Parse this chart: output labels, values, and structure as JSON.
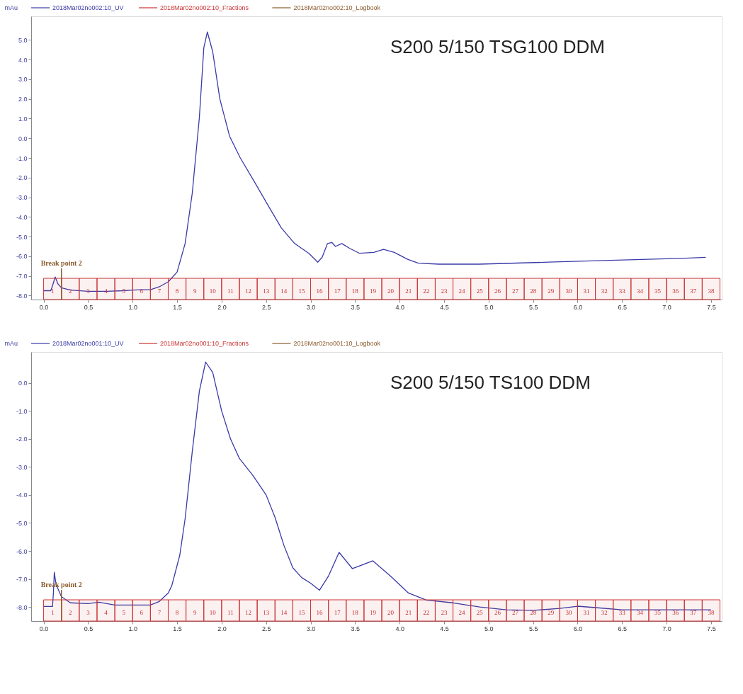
{
  "chart_data": [
    {
      "type": "line",
      "title": "S200 5/150 TSG100 DDM",
      "ylabel": "mAu",
      "legend": "top left",
      "series": [
        {
          "name": "2018Mar02no002:10_UV",
          "color": "#3a3aa8",
          "x": [
            0,
            0.08,
            0.1,
            0.13,
            0.16,
            0.2,
            0.3,
            0.5,
            0.7,
            0.9,
            1.0,
            1.1,
            1.2,
            1.3,
            1.4,
            1.5,
            1.59,
            1.67,
            1.75,
            1.8,
            1.84,
            1.9,
            1.98,
            2.09,
            2.21,
            2.36,
            2.52,
            2.67,
            2.82,
            2.98,
            3.08,
            3.13,
            3.19,
            3.24,
            3.28,
            3.35,
            3.44,
            3.55,
            3.71,
            3.82,
            3.94,
            4.09,
            4.21,
            4.44,
            4.9,
            5.67,
            6.44,
            7.21,
            7.44
          ],
          "values": [
            -7.75,
            -7.75,
            -7.5,
            -7.05,
            -7.4,
            -7.6,
            -7.72,
            -7.78,
            -7.78,
            -7.75,
            -7.72,
            -7.7,
            -7.7,
            -7.55,
            -7.3,
            -6.8,
            -5.35,
            -2.8,
            1.05,
            4.6,
            5.4,
            4.4,
            2.0,
            0.1,
            -1.0,
            -2.15,
            -3.4,
            -4.55,
            -5.35,
            -5.85,
            -6.3,
            -6.05,
            -5.35,
            -5.3,
            -5.5,
            -5.35,
            -5.6,
            -5.85,
            -5.8,
            -5.65,
            -5.8,
            -6.15,
            -6.35,
            -6.4,
            -6.4,
            -6.3,
            -6.2,
            -6.1,
            -6.05
          ]
        },
        {
          "name": "2018Mar02no002:10_Fractions",
          "color": "#cc3333"
        },
        {
          "name": "2018Mar02no002:10_Logbook",
          "color": "#8b5a2b"
        }
      ],
      "xlim": [
        -0.14,
        7.62
      ],
      "ylim": [
        -8.2,
        6.2
      ],
      "xticks": [
        {
          "value": 0,
          "label": "0.0"
        },
        {
          "value": 0.5,
          "label": "0.5"
        },
        {
          "value": 1,
          "label": "1.0"
        },
        {
          "value": 1.5,
          "label": "1.5"
        },
        {
          "value": 2,
          "label": "2.0"
        },
        {
          "value": 2.5,
          "label": "2.5"
        },
        {
          "value": 3,
          "label": "3.0"
        },
        {
          "value": 3.5,
          "label": "3.5"
        },
        {
          "value": 4,
          "label": "4.0"
        },
        {
          "value": 4.5,
          "label": "4.5"
        },
        {
          "value": 5,
          "label": "5.0"
        },
        {
          "value": 5.5,
          "label": "5.5"
        },
        {
          "value": 6,
          "label": "6.0"
        },
        {
          "value": 6.5,
          "label": "6.5"
        },
        {
          "value": 7,
          "label": "7.0"
        },
        {
          "value": 7.5,
          "label": "7.5"
        }
      ],
      "yticks": [
        {
          "value": 5,
          "label": "5.0"
        },
        {
          "value": 4,
          "label": "4.0"
        },
        {
          "value": 3,
          "label": "3.0"
        },
        {
          "value": 2,
          "label": "2.0"
        },
        {
          "value": 1,
          "label": "1.0"
        },
        {
          "value": 0,
          "label": "0.0"
        },
        {
          "value": -1,
          "label": "-1.0"
        },
        {
          "value": -2,
          "label": "-2.0"
        },
        {
          "value": -3,
          "label": "-3.0"
        },
        {
          "value": -4,
          "label": "-4.0"
        },
        {
          "value": -5,
          "label": "-5.0"
        },
        {
          "value": -6,
          "label": "-6.0"
        },
        {
          "value": -7,
          "label": "-7.0"
        },
        {
          "value": -8,
          "label": "-8.0"
        }
      ],
      "ref_lines": [
        {
          "axis": "x",
          "value": 0.2,
          "label": "Break point 2",
          "color": "#8b5a2b"
        }
      ],
      "bands": [
        {
          "axis": "x",
          "from": 0,
          "to": 0.2,
          "label": "1",
          "color": "#cc3333"
        },
        {
          "axis": "x",
          "from": 0.2,
          "to": 0.4,
          "label": "2",
          "color": "#cc3333"
        },
        {
          "axis": "x",
          "from": 0.4,
          "to": 0.6,
          "label": "3",
          "color": "#cc3333"
        },
        {
          "axis": "x",
          "from": 0.6,
          "to": 0.8,
          "label": "4",
          "color": "#cc3333"
        },
        {
          "axis": "x",
          "from": 0.8,
          "to": 1.0,
          "label": "5",
          "color": "#cc3333"
        },
        {
          "axis": "x",
          "from": 1.0,
          "to": 1.2,
          "label": "6",
          "color": "#cc3333"
        },
        {
          "axis": "x",
          "from": 1.2,
          "to": 1.4,
          "label": "7",
          "color": "#cc3333"
        },
        {
          "axis": "x",
          "from": 1.4,
          "to": 1.6,
          "label": "8",
          "color": "#cc3333"
        },
        {
          "axis": "x",
          "from": 1.6,
          "to": 1.8,
          "label": "9",
          "color": "#cc3333"
        },
        {
          "axis": "x",
          "from": 1.8,
          "to": 2.0,
          "label": "10",
          "color": "#cc3333"
        },
        {
          "axis": "x",
          "from": 2.0,
          "to": 2.2,
          "label": "11",
          "color": "#cc3333"
        },
        {
          "axis": "x",
          "from": 2.2,
          "to": 2.4,
          "label": "12",
          "color": "#cc3333"
        },
        {
          "axis": "x",
          "from": 2.4,
          "to": 2.6,
          "label": "13",
          "color": "#cc3333"
        },
        {
          "axis": "x",
          "from": 2.6,
          "to": 2.8,
          "label": "14",
          "color": "#cc3333"
        },
        {
          "axis": "x",
          "from": 2.8,
          "to": 3.0,
          "label": "15",
          "color": "#cc3333"
        },
        {
          "axis": "x",
          "from": 3.0,
          "to": 3.2,
          "label": "16",
          "color": "#cc3333"
        },
        {
          "axis": "x",
          "from": 3.2,
          "to": 3.4,
          "label": "17",
          "color": "#cc3333"
        },
        {
          "axis": "x",
          "from": 3.4,
          "to": 3.6,
          "label": "18",
          "color": "#cc3333"
        },
        {
          "axis": "x",
          "from": 3.6,
          "to": 3.8,
          "label": "19",
          "color": "#cc3333"
        },
        {
          "axis": "x",
          "from": 3.8,
          "to": 4.0,
          "label": "20",
          "color": "#cc3333"
        },
        {
          "axis": "x",
          "from": 4.0,
          "to": 4.2,
          "label": "21",
          "color": "#cc3333"
        },
        {
          "axis": "x",
          "from": 4.2,
          "to": 4.4,
          "label": "22",
          "color": "#cc3333"
        },
        {
          "axis": "x",
          "from": 4.4,
          "to": 4.6,
          "label": "23",
          "color": "#cc3333"
        },
        {
          "axis": "x",
          "from": 4.6,
          "to": 4.8,
          "label": "24",
          "color": "#cc3333"
        },
        {
          "axis": "x",
          "from": 4.8,
          "to": 5.0,
          "label": "25",
          "color": "#cc3333"
        },
        {
          "axis": "x",
          "from": 5.0,
          "to": 5.2,
          "label": "26",
          "color": "#cc3333"
        },
        {
          "axis": "x",
          "from": 5.2,
          "to": 5.4,
          "label": "27",
          "color": "#cc3333"
        },
        {
          "axis": "x",
          "from": 5.4,
          "to": 5.6,
          "label": "28",
          "color": "#cc3333"
        },
        {
          "axis": "x",
          "from": 5.6,
          "to": 5.8,
          "label": "29",
          "color": "#cc3333"
        },
        {
          "axis": "x",
          "from": 5.8,
          "to": 6.0,
          "label": "30",
          "color": "#cc3333"
        },
        {
          "axis": "x",
          "from": 6.0,
          "to": 6.2,
          "label": "31",
          "color": "#cc3333"
        },
        {
          "axis": "x",
          "from": 6.2,
          "to": 6.4,
          "label": "32",
          "color": "#cc3333"
        },
        {
          "axis": "x",
          "from": 6.4,
          "to": 6.6,
          "label": "33",
          "color": "#cc3333"
        },
        {
          "axis": "x",
          "from": 6.6,
          "to": 6.8,
          "label": "34",
          "color": "#cc3333"
        },
        {
          "axis": "x",
          "from": 6.8,
          "to": 7.0,
          "label": "35",
          "color": "#cc3333"
        },
        {
          "axis": "x",
          "from": 7.0,
          "to": 7.2,
          "label": "36",
          "color": "#cc3333"
        },
        {
          "axis": "x",
          "from": 7.2,
          "to": 7.4,
          "label": "37",
          "color": "#cc3333"
        },
        {
          "axis": "x",
          "from": 7.4,
          "to": 7.6,
          "label": "38",
          "color": "#cc3333"
        }
      ]
    },
    {
      "type": "line",
      "title": "S200 5/150 TS100 DDM",
      "ylabel": "mAu",
      "legend": "top left",
      "series": [
        {
          "name": "2018Mar02no001:10_UV",
          "color": "#3a3aa8",
          "x": [
            0,
            0.1,
            0.11,
            0.12,
            0.14,
            0.2,
            0.3,
            0.5,
            0.62,
            0.8,
            1.0,
            1.2,
            1.3,
            1.4,
            1.44,
            1.53,
            1.59,
            1.67,
            1.75,
            1.82,
            1.9,
            2.0,
            2.1,
            2.2,
            2.35,
            2.5,
            2.6,
            2.7,
            2.8,
            2.9,
            3.0,
            3.1,
            3.2,
            3.32,
            3.47,
            3.7,
            3.9,
            4.1,
            4.3,
            4.6,
            4.9,
            5.2,
            5.5,
            5.8,
            6.0,
            6.2,
            6.5,
            7.0,
            7.5
          ],
          "values": [
            -7.98,
            -7.98,
            -7.5,
            -6.76,
            -7.2,
            -7.63,
            -7.85,
            -7.88,
            -7.83,
            -7.93,
            -7.93,
            -7.93,
            -7.8,
            -7.5,
            -7.24,
            -6.15,
            -4.85,
            -2.46,
            -0.3,
            0.74,
            0.37,
            -1.0,
            -2.0,
            -2.7,
            -3.3,
            -4.0,
            -4.8,
            -5.8,
            -6.6,
            -6.95,
            -7.15,
            -7.4,
            -6.9,
            -6.05,
            -6.63,
            -6.35,
            -6.9,
            -7.5,
            -7.75,
            -7.85,
            -8.0,
            -8.1,
            -8.12,
            -8.05,
            -7.97,
            -8.02,
            -8.1,
            -8.1,
            -8.1
          ]
        },
        {
          "name": "2018Mar02no001:10_Fractions",
          "color": "#cc3333"
        },
        {
          "name": "2018Mar02no001:10_Logbook",
          "color": "#8b5a2b"
        }
      ],
      "xlim": [
        -0.14,
        7.62
      ],
      "ylim": [
        -8.5,
        1.1
      ],
      "xticks": [
        {
          "value": 0,
          "label": "0.0"
        },
        {
          "value": 0.5,
          "label": "0.5"
        },
        {
          "value": 1,
          "label": "1.0"
        },
        {
          "value": 1.5,
          "label": "1.5"
        },
        {
          "value": 2,
          "label": "2.0"
        },
        {
          "value": 2.5,
          "label": "2.5"
        },
        {
          "value": 3,
          "label": "3.0"
        },
        {
          "value": 3.5,
          "label": "3.5"
        },
        {
          "value": 4,
          "label": "4.0"
        },
        {
          "value": 4.5,
          "label": "4.5"
        },
        {
          "value": 5,
          "label": "5.0"
        },
        {
          "value": 5.5,
          "label": "5.5"
        },
        {
          "value": 6,
          "label": "6.0"
        },
        {
          "value": 6.5,
          "label": "6.5"
        },
        {
          "value": 7,
          "label": "7.0"
        },
        {
          "value": 7.5,
          "label": "7.5"
        }
      ],
      "yticks": [
        {
          "value": 0,
          "label": "0.0"
        },
        {
          "value": -1,
          "label": "-1.0"
        },
        {
          "value": -2,
          "label": "-2.0"
        },
        {
          "value": -3,
          "label": "-3.0"
        },
        {
          "value": -4,
          "label": "-4.0"
        },
        {
          "value": -5,
          "label": "-5.0"
        },
        {
          "value": -6,
          "label": "-6.0"
        },
        {
          "value": -7,
          "label": "-7.0"
        },
        {
          "value": -8,
          "label": "-8.0"
        }
      ],
      "ref_lines": [
        {
          "axis": "x",
          "value": 0.2,
          "label": "Break point 2",
          "color": "#8b5a2b"
        }
      ],
      "bands": [
        {
          "axis": "x",
          "from": 0,
          "to": 0.2,
          "label": "1",
          "color": "#cc3333"
        },
        {
          "axis": "x",
          "from": 0.2,
          "to": 0.4,
          "label": "2",
          "color": "#cc3333"
        },
        {
          "axis": "x",
          "from": 0.4,
          "to": 0.6,
          "label": "3",
          "color": "#cc3333"
        },
        {
          "axis": "x",
          "from": 0.6,
          "to": 0.8,
          "label": "4",
          "color": "#cc3333"
        },
        {
          "axis": "x",
          "from": 0.8,
          "to": 1.0,
          "label": "5",
          "color": "#cc3333"
        },
        {
          "axis": "x",
          "from": 1.0,
          "to": 1.2,
          "label": "6",
          "color": "#cc3333"
        },
        {
          "axis": "x",
          "from": 1.2,
          "to": 1.4,
          "label": "7",
          "color": "#cc3333"
        },
        {
          "axis": "x",
          "from": 1.4,
          "to": 1.6,
          "label": "8",
          "color": "#cc3333"
        },
        {
          "axis": "x",
          "from": 1.6,
          "to": 1.8,
          "label": "9",
          "color": "#cc3333"
        },
        {
          "axis": "x",
          "from": 1.8,
          "to": 2.0,
          "label": "10",
          "color": "#cc3333"
        },
        {
          "axis": "x",
          "from": 2.0,
          "to": 2.2,
          "label": "11",
          "color": "#cc3333"
        },
        {
          "axis": "x",
          "from": 2.2,
          "to": 2.4,
          "label": "12",
          "color": "#cc3333"
        },
        {
          "axis": "x",
          "from": 2.4,
          "to": 2.6,
          "label": "13",
          "color": "#cc3333"
        },
        {
          "axis": "x",
          "from": 2.6,
          "to": 2.8,
          "label": "14",
          "color": "#cc3333"
        },
        {
          "axis": "x",
          "from": 2.8,
          "to": 3.0,
          "label": "15",
          "color": "#cc3333"
        },
        {
          "axis": "x",
          "from": 3.0,
          "to": 3.2,
          "label": "16",
          "color": "#cc3333"
        },
        {
          "axis": "x",
          "from": 3.2,
          "to": 3.4,
          "label": "17",
          "color": "#cc3333"
        },
        {
          "axis": "x",
          "from": 3.4,
          "to": 3.6,
          "label": "18",
          "color": "#cc3333"
        },
        {
          "axis": "x",
          "from": 3.6,
          "to": 3.8,
          "label": "19",
          "color": "#cc3333"
        },
        {
          "axis": "x",
          "from": 3.8,
          "to": 4.0,
          "label": "20",
          "color": "#cc3333"
        },
        {
          "axis": "x",
          "from": 4.0,
          "to": 4.2,
          "label": "21",
          "color": "#cc3333"
        },
        {
          "axis": "x",
          "from": 4.2,
          "to": 4.4,
          "label": "22",
          "color": "#cc3333"
        },
        {
          "axis": "x",
          "from": 4.4,
          "to": 4.6,
          "label": "23",
          "color": "#cc3333"
        },
        {
          "axis": "x",
          "from": 4.6,
          "to": 4.8,
          "label": "24",
          "color": "#cc3333"
        },
        {
          "axis": "x",
          "from": 4.8,
          "to": 5.0,
          "label": "25",
          "color": "#cc3333"
        },
        {
          "axis": "x",
          "from": 5.0,
          "to": 5.2,
          "label": "26",
          "color": "#cc3333"
        },
        {
          "axis": "x",
          "from": 5.2,
          "to": 5.4,
          "label": "27",
          "color": "#cc3333"
        },
        {
          "axis": "x",
          "from": 5.4,
          "to": 5.6,
          "label": "28",
          "color": "#cc3333"
        },
        {
          "axis": "x",
          "from": 5.6,
          "to": 5.8,
          "label": "29",
          "color": "#cc3333"
        },
        {
          "axis": "x",
          "from": 5.8,
          "to": 6.0,
          "label": "30",
          "color": "#cc3333"
        },
        {
          "axis": "x",
          "from": 6.0,
          "to": 6.2,
          "label": "31",
          "color": "#cc3333"
        },
        {
          "axis": "x",
          "from": 6.2,
          "to": 6.4,
          "label": "32",
          "color": "#cc3333"
        },
        {
          "axis": "x",
          "from": 6.4,
          "to": 6.6,
          "label": "33",
          "color": "#cc3333"
        },
        {
          "axis": "x",
          "from": 6.6,
          "to": 6.8,
          "label": "34",
          "color": "#cc3333"
        },
        {
          "axis": "x",
          "from": 6.8,
          "to": 7.0,
          "label": "35",
          "color": "#cc3333"
        },
        {
          "axis": "x",
          "from": 7.0,
          "to": 7.2,
          "label": "36",
          "color": "#cc3333"
        },
        {
          "axis": "x",
          "from": 7.2,
          "to": 7.4,
          "label": "37",
          "color": "#cc3333"
        },
        {
          "axis": "x",
          "from": 7.4,
          "to": 7.6,
          "label": "38",
          "color": "#cc3333"
        }
      ]
    }
  ]
}
